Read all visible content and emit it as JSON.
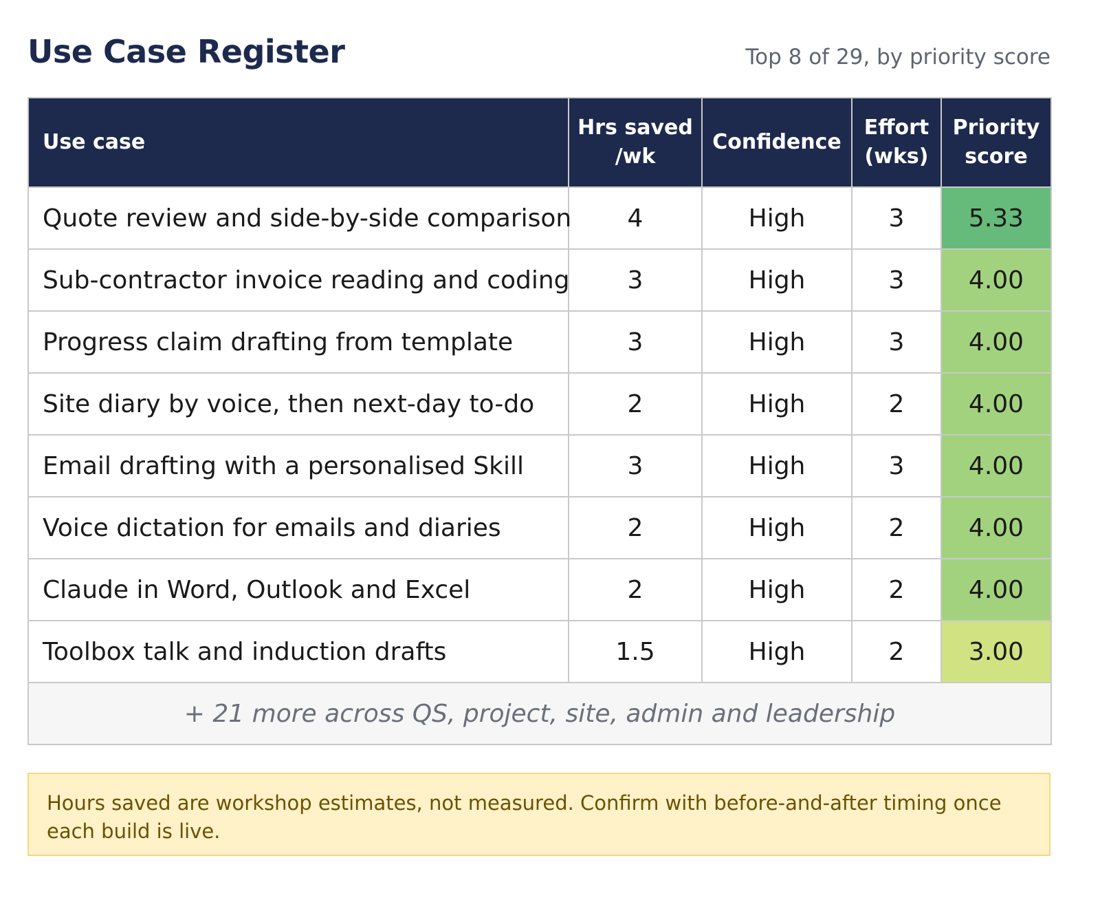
{
  "header": {
    "title": "Use Case Register",
    "subtitle": "Top 8 of 29, by priority score"
  },
  "table": {
    "columns": [
      {
        "line1": "Use case",
        "line2": ""
      },
      {
        "line1": "Hrs saved",
        "line2": "/wk"
      },
      {
        "line1": "Confidence",
        "line2": ""
      },
      {
        "line1": "Effort",
        "line2": "(wks)"
      },
      {
        "line1": "Priority",
        "line2": "score"
      }
    ],
    "rows": [
      {
        "use_case": "Quote review and side-by-side comparison",
        "hrs_saved": "4",
        "confidence": "High",
        "effort": "3",
        "score": "5.33",
        "score_color": "#66bb7a"
      },
      {
        "use_case": "Sub-contractor invoice reading and coding",
        "hrs_saved": "3",
        "confidence": "High",
        "effort": "3",
        "score": "4.00",
        "score_color": "#a3d27e"
      },
      {
        "use_case": "Progress claim drafting from template",
        "hrs_saved": "3",
        "confidence": "High",
        "effort": "3",
        "score": "4.00",
        "score_color": "#a3d27e"
      },
      {
        "use_case": "Site diary by voice, then next-day to-do",
        "hrs_saved": "2",
        "confidence": "High",
        "effort": "2",
        "score": "4.00",
        "score_color": "#a3d27e"
      },
      {
        "use_case": "Email drafting with a personalised Skill",
        "hrs_saved": "3",
        "confidence": "High",
        "effort": "3",
        "score": "4.00",
        "score_color": "#a3d27e"
      },
      {
        "use_case": "Voice dictation for emails and diaries",
        "hrs_saved": "2",
        "confidence": "High",
        "effort": "2",
        "score": "4.00",
        "score_color": "#a3d27e"
      },
      {
        "use_case": "Claude in Word, Outlook and Excel",
        "hrs_saved": "2",
        "confidence": "High",
        "effort": "2",
        "score": "4.00",
        "score_color": "#a3d27e"
      },
      {
        "use_case": "Toolbox talk and induction drafts",
        "hrs_saved": "1.5",
        "confidence": "High",
        "effort": "2",
        "score": "3.00",
        "score_color": "#d1e282"
      }
    ],
    "more_row": "+ 21 more across QS, project, site, admin and leadership"
  },
  "note": {
    "text": "Hours saved are workshop estimates, not measured. Confirm with before-and-after timing once each build is live."
  },
  "colors": {
    "header_bg": "#1d2a4d",
    "note_bg": "#fff1c8",
    "note_text": "#6b5200"
  }
}
